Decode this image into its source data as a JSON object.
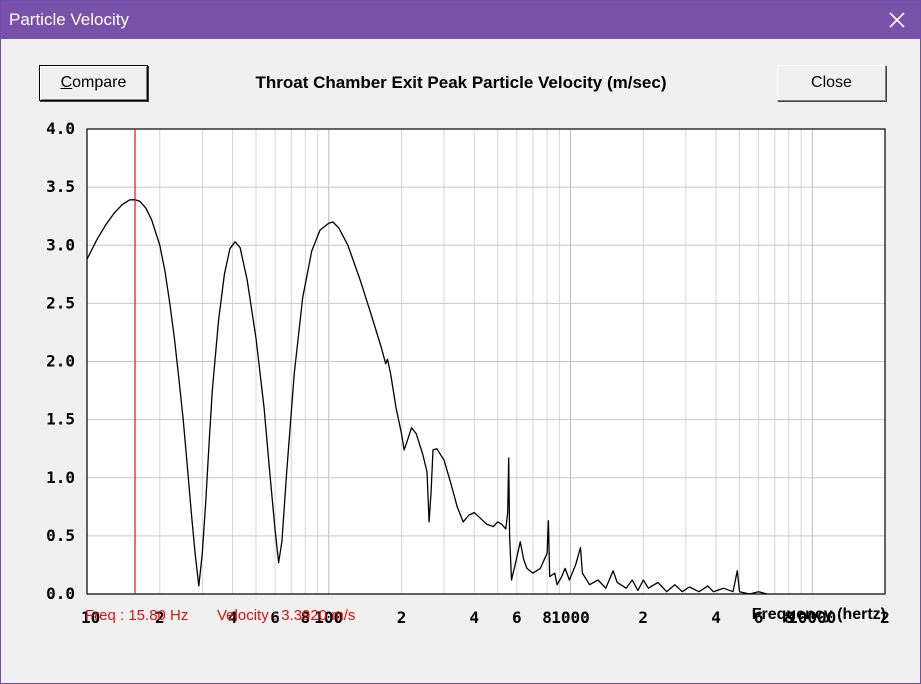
{
  "window": {
    "title": "Particle Velocity",
    "close_icon": "close-x-icon"
  },
  "buttons": {
    "compare": "Compare",
    "compare_accel": "C",
    "compare_rest": "ompare",
    "close": "Close"
  },
  "status": {
    "freq": "Freq : 15.80 Hz",
    "velocity": "Velocity : 3.3920 m/s"
  },
  "colors": {
    "titlebar": "#7851a9",
    "cursor": "#e01010",
    "curve": "#000000",
    "grid": "#c8c8c8"
  },
  "chart_data": {
    "type": "line",
    "title": "Throat Chamber Exit Peak Particle Velocity (m/sec)",
    "xlabel": "Frequency (hertz)",
    "ylabel": "",
    "xscale": "log",
    "xlim": [
      10,
      20000
    ],
    "ylim": [
      0,
      4
    ],
    "grid": true,
    "y_ticks": [
      "0.0",
      "0.5",
      "1.0",
      "1.5",
      "2.0",
      "2.5",
      "3.0",
      "3.5",
      "4.0"
    ],
    "x_tick_labels": [
      {
        "x": 10,
        "label": "10"
      },
      {
        "x": 20,
        "label": "2"
      },
      {
        "x": 40,
        "label": "4"
      },
      {
        "x": 60,
        "label": "6"
      },
      {
        "x": 80,
        "label": "8"
      },
      {
        "x": 100,
        "label": "100"
      },
      {
        "x": 200,
        "label": "2"
      },
      {
        "x": 400,
        "label": "4"
      },
      {
        "x": 600,
        "label": "6"
      },
      {
        "x": 800,
        "label": "8"
      },
      {
        "x": 1000,
        "label": "1000"
      },
      {
        "x": 2000,
        "label": "2"
      },
      {
        "x": 4000,
        "label": "4"
      },
      {
        "x": 6000,
        "label": "6"
      },
      {
        "x": 8000,
        "label": "8"
      },
      {
        "x": 10000,
        "label": "10000"
      },
      {
        "x": 20000,
        "label": "2"
      }
    ],
    "cursor": {
      "x": 15.8,
      "y": 3.392
    },
    "series": [
      {
        "points": [
          [
            10,
            2.88
          ],
          [
            11,
            3.05
          ],
          [
            12,
            3.18
          ],
          [
            13,
            3.28
          ],
          [
            14,
            3.35
          ],
          [
            15,
            3.39
          ],
          [
            15.8,
            3.392
          ],
          [
            16.5,
            3.38
          ],
          [
            17.5,
            3.32
          ],
          [
            18.5,
            3.22
          ],
          [
            20,
            3.0
          ],
          [
            21,
            2.78
          ],
          [
            22,
            2.5
          ],
          [
            23,
            2.2
          ],
          [
            24,
            1.85
          ],
          [
            25,
            1.5
          ],
          [
            26,
            1.1
          ],
          [
            27,
            0.7
          ],
          [
            28,
            0.35
          ],
          [
            29,
            0.07
          ],
          [
            30,
            0.35
          ],
          [
            31,
            0.8
          ],
          [
            32,
            1.3
          ],
          [
            33,
            1.75
          ],
          [
            35,
            2.35
          ],
          [
            37,
            2.75
          ],
          [
            39,
            2.97
          ],
          [
            41,
            3.03
          ],
          [
            43,
            2.98
          ],
          [
            46,
            2.7
          ],
          [
            50,
            2.2
          ],
          [
            54,
            1.6
          ],
          [
            57,
            1.05
          ],
          [
            60,
            0.55
          ],
          [
            62,
            0.27
          ],
          [
            64,
            0.45
          ],
          [
            67,
            1.05
          ],
          [
            72,
            1.9
          ],
          [
            78,
            2.55
          ],
          [
            85,
            2.95
          ],
          [
            92,
            3.13
          ],
          [
            100,
            3.19
          ],
          [
            104,
            3.2
          ],
          [
            110,
            3.15
          ],
          [
            120,
            3.0
          ],
          [
            135,
            2.7
          ],
          [
            150,
            2.4
          ],
          [
            165,
            2.12
          ],
          [
            172,
            1.98
          ],
          [
            175,
            2.02
          ],
          [
            180,
            1.9
          ],
          [
            190,
            1.6
          ],
          [
            200,
            1.38
          ],
          [
            205,
            1.24
          ],
          [
            210,
            1.3
          ],
          [
            220,
            1.43
          ],
          [
            230,
            1.38
          ],
          [
            245,
            1.2
          ],
          [
            255,
            1.05
          ],
          [
            260,
            0.62
          ],
          [
            265,
            0.88
          ],
          [
            270,
            1.24
          ],
          [
            280,
            1.25
          ],
          [
            300,
            1.15
          ],
          [
            320,
            0.95
          ],
          [
            340,
            0.75
          ],
          [
            360,
            0.62
          ],
          [
            380,
            0.68
          ],
          [
            400,
            0.7
          ],
          [
            420,
            0.66
          ],
          [
            450,
            0.6
          ],
          [
            480,
            0.58
          ],
          [
            500,
            0.62
          ],
          [
            520,
            0.6
          ],
          [
            540,
            0.56
          ],
          [
            550,
            0.7
          ],
          [
            555,
            1.17
          ],
          [
            560,
            0.5
          ],
          [
            570,
            0.12
          ],
          [
            590,
            0.25
          ],
          [
            620,
            0.45
          ],
          [
            640,
            0.3
          ],
          [
            660,
            0.22
          ],
          [
            700,
            0.18
          ],
          [
            750,
            0.22
          ],
          [
            800,
            0.35
          ],
          [
            810,
            0.63
          ],
          [
            820,
            0.15
          ],
          [
            860,
            0.18
          ],
          [
            880,
            0.08
          ],
          [
            920,
            0.15
          ],
          [
            950,
            0.22
          ],
          [
            990,
            0.12
          ],
          [
            1050,
            0.25
          ],
          [
            1100,
            0.4
          ],
          [
            1120,
            0.18
          ],
          [
            1200,
            0.08
          ],
          [
            1300,
            0.12
          ],
          [
            1400,
            0.05
          ],
          [
            1500,
            0.2
          ],
          [
            1560,
            0.1
          ],
          [
            1700,
            0.05
          ],
          [
            1800,
            0.12
          ],
          [
            1900,
            0.03
          ],
          [
            2000,
            0.12
          ],
          [
            2100,
            0.05
          ],
          [
            2300,
            0.1
          ],
          [
            2500,
            0.02
          ],
          [
            2700,
            0.08
          ],
          [
            2900,
            0.02
          ],
          [
            3100,
            0.06
          ],
          [
            3400,
            0.02
          ],
          [
            3700,
            0.07
          ],
          [
            3900,
            0.02
          ],
          [
            4300,
            0.05
          ],
          [
            4700,
            0.02
          ],
          [
            4900,
            0.2
          ],
          [
            5000,
            0.02
          ],
          [
            5500,
            0.0
          ],
          [
            6000,
            0.02
          ],
          [
            6500,
            0.0
          ]
        ]
      }
    ]
  }
}
